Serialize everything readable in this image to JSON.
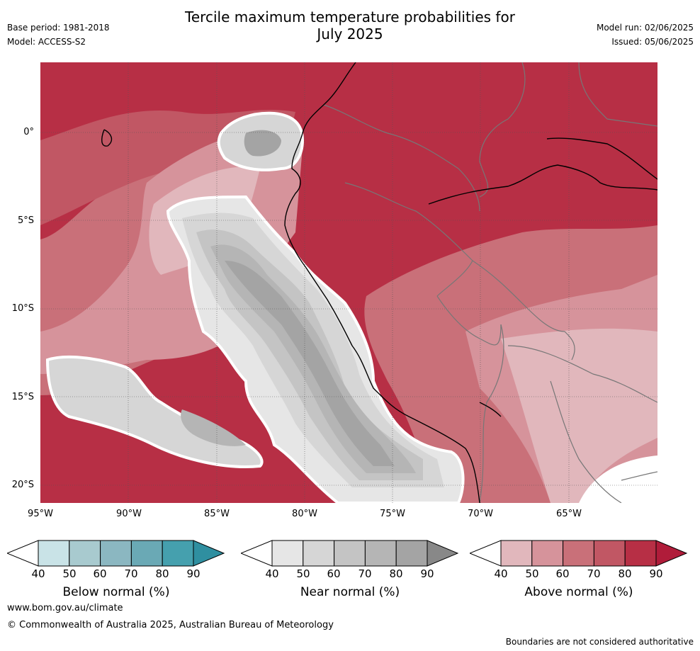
{
  "title_line1": "Tercile maximum temperature probabilities for",
  "title_line2": "July 2025",
  "base_period": "Base period: 1981-2018",
  "model": "Model: ACCESS-S2",
  "model_run": "Model run: 02/06/2025",
  "issued": "Issued: 05/06/2025",
  "map": {
    "lat_labels": [
      "0°",
      "5°S",
      "10°S",
      "15°S",
      "20°S"
    ],
    "lon_labels": [
      "95°W",
      "90°W",
      "85°W",
      "80°W",
      "75°W",
      "70°W",
      "65°W"
    ]
  },
  "colorbars": [
    {
      "name": "Below normal (%)",
      "ticks": [
        "40",
        "50",
        "60",
        "70",
        "80",
        "90"
      ],
      "colors": [
        "#c9e3e7",
        "#a8cacf",
        "#8bb7c1",
        "#6aa9b5",
        "#45a0ae",
        "#2f8fa0"
      ]
    },
    {
      "name": "Near normal (%)",
      "ticks": [
        "40",
        "50",
        "60",
        "70",
        "80",
        "90"
      ],
      "colors": [
        "#e6e6e6",
        "#d6d6d6",
        "#c4c4c4",
        "#b5b5b5",
        "#a4a4a4",
        "#888888"
      ]
    },
    {
      "name": "Above normal (%)",
      "ticks": [
        "40",
        "50",
        "60",
        "70",
        "80",
        "90"
      ],
      "colors": [
        "#e1b7bc",
        "#d6939b",
        "#c97079",
        "#c15764",
        "#b72f45",
        "#b01c3a"
      ]
    }
  ],
  "footer": {
    "website": "www.bom.gov.au/climate",
    "copyright": "© Commonwealth of Australia 2025, Australian Bureau of Meteorology",
    "disclaimer": "Boundaries are not considered authoritative"
  }
}
